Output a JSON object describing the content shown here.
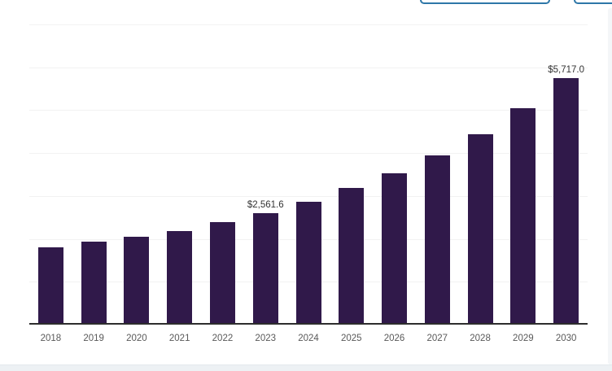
{
  "header": {
    "button_border_color": "#2e77a8",
    "toolbar_buttons": [
      {
        "name": "toolbar-button-1",
        "label": ""
      },
      {
        "name": "toolbar-button-2",
        "label": ""
      }
    ]
  },
  "chart_data": {
    "type": "bar",
    "title": "",
    "xlabel": "",
    "ylabel": "",
    "categories": [
      "2018",
      "2019",
      "2020",
      "2021",
      "2022",
      "2023",
      "2024",
      "2025",
      "2026",
      "2027",
      "2028",
      "2029",
      "2030"
    ],
    "values": [
      1770,
      1890,
      2015,
      2140,
      2350,
      2561.6,
      2820,
      3155,
      3495,
      3910,
      4410,
      5010,
      5717.0
    ],
    "data_labels": {
      "2023": "$2,561.6",
      "2030": "$5,717.0"
    },
    "ylim": [
      0,
      7000
    ],
    "gridline_step": 1000,
    "grid": true,
    "legend": false,
    "bar_color": "#30194a",
    "gridline_color": "#f2f2f2",
    "axis_line_color": "#2d2d2d",
    "tick_label_color": "#595959",
    "data_label_color": "#333333"
  },
  "footer": {
    "band_color": "#edf1f4"
  }
}
